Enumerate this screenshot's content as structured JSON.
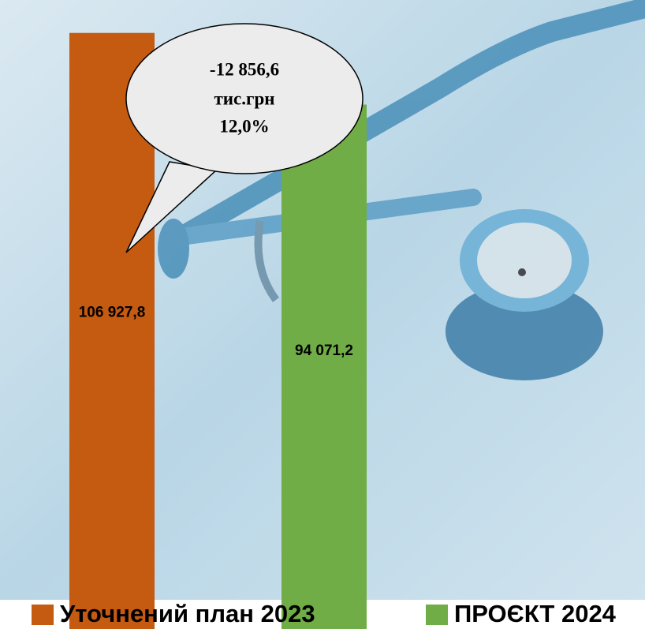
{
  "chart_data": {
    "type": "bar",
    "categories": [
      null
    ],
    "series": [
      {
        "name": "Уточнений план 2023",
        "color": "#c55a11",
        "values": [
          106927.8
        ],
        "value_labels": [
          "106 927,8"
        ]
      },
      {
        "name": "ПРОЄКТ 2024",
        "color": "#70ad47",
        "values": [
          94071.2
        ],
        "value_labels": [
          "94 071,2"
        ]
      }
    ],
    "ylim": [
      0,
      110000
    ],
    "annotation": [
      "-12 856,6",
      "тис.грн",
      "12,0%"
    ],
    "legend": "bottom"
  }
}
